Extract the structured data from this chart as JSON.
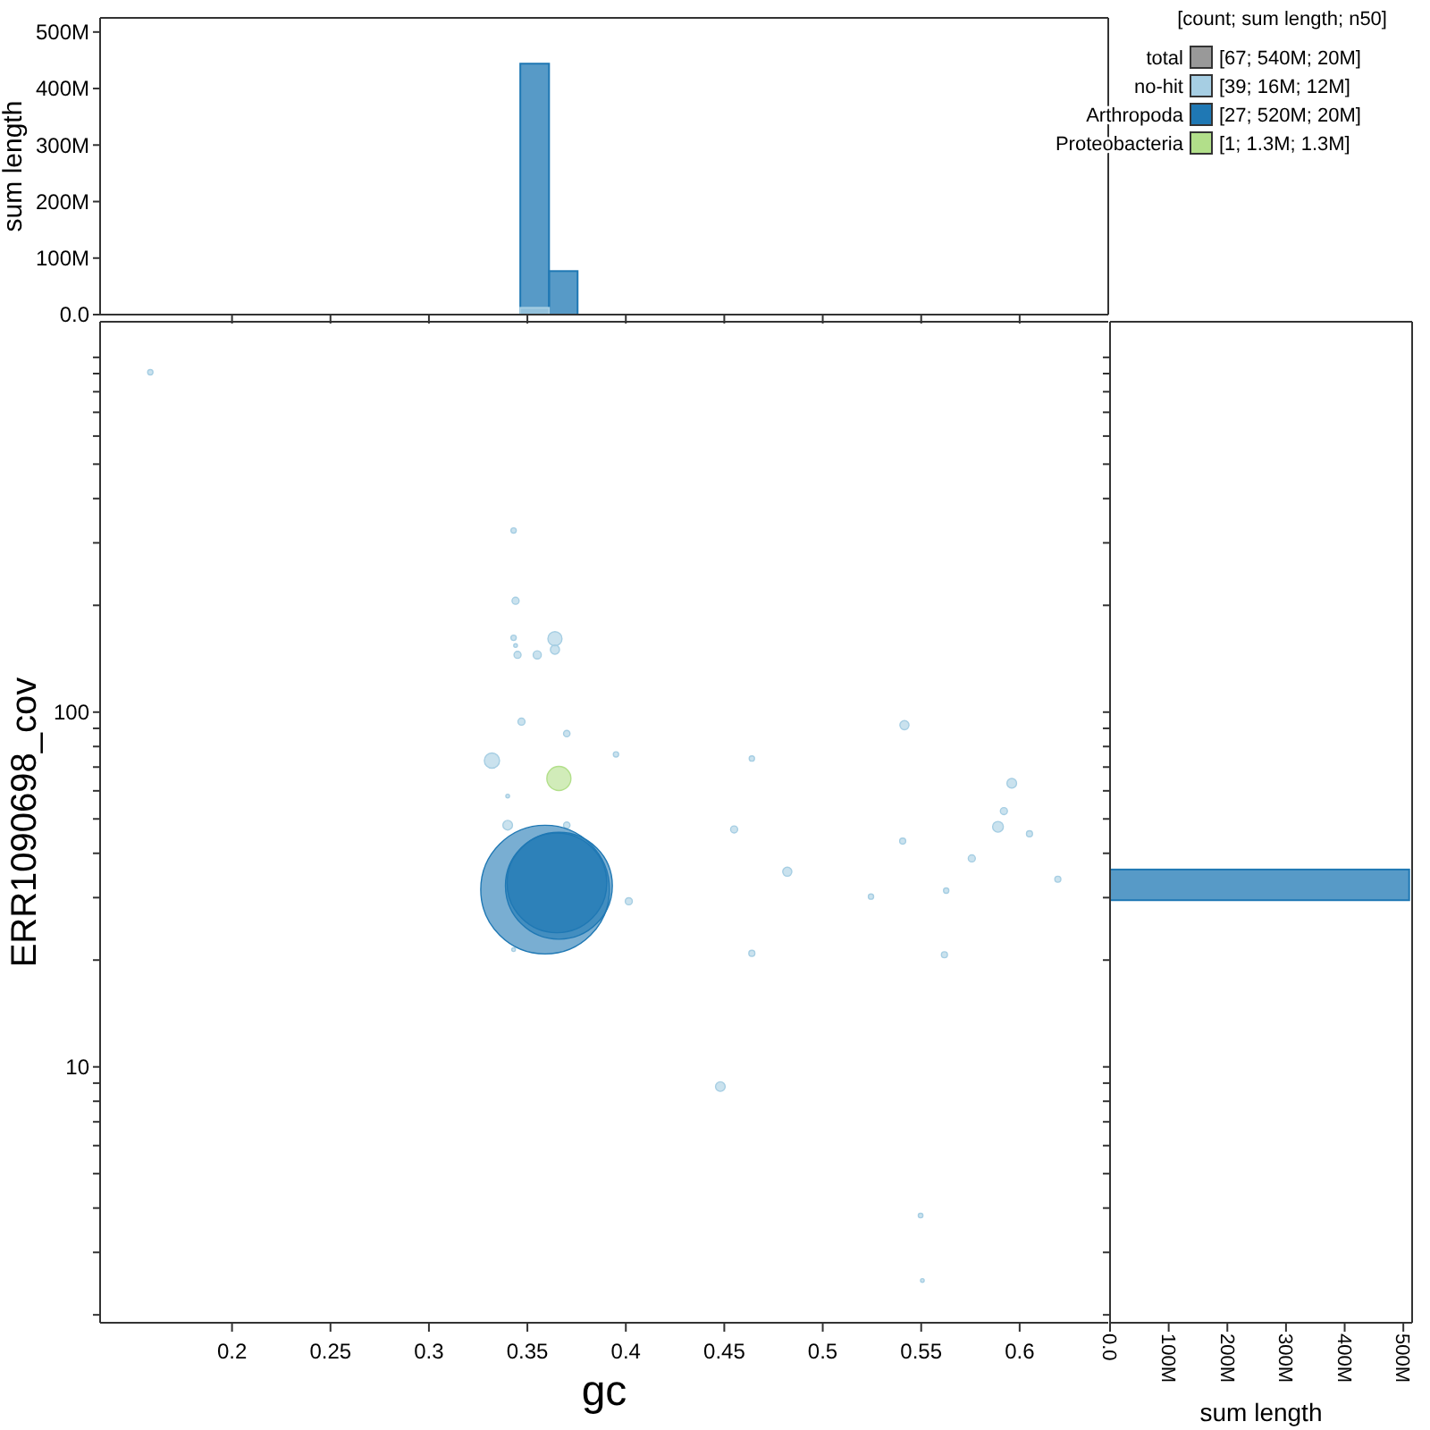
{
  "chart_data": [
    {
      "type": "histogram",
      "ylabel": "sum length",
      "tick_labels": "y",
      "xlim": [
        0.133,
        0.645
      ],
      "xticks": [
        {
          "value": 0.2,
          "label": null
        },
        {
          "value": 0.25,
          "label": null
        },
        {
          "value": 0.3,
          "label": null
        },
        {
          "value": 0.35,
          "label": null
        },
        {
          "value": 0.4,
          "label": null
        },
        {
          "value": 0.45,
          "label": null
        },
        {
          "value": 0.5,
          "label": null
        },
        {
          "value": 0.55,
          "label": null
        },
        {
          "value": 0.6,
          "label": null
        }
      ],
      "ylim": [
        0,
        525000000
      ],
      "yticks": [
        {
          "value": 0,
          "label": "0.0"
        },
        {
          "value": 100000000,
          "label": "100M"
        },
        {
          "value": 200000000,
          "label": "200M"
        },
        {
          "value": 300000000,
          "label": "300M"
        },
        {
          "value": 400000000,
          "label": "400M"
        },
        {
          "value": 500000000,
          "label": "500M"
        }
      ],
      "bins": [
        0.3464,
        0.361,
        0.3755
      ],
      "series": [
        {
          "color": "#1f78b4",
          "values": [
            444000000,
            77000000
          ]
        },
        {
          "color": "#a6cee3",
          "values": [
            12000000,
            null
          ]
        }
      ]
    },
    {
      "type": "bubble",
      "xlabel": "gc",
      "ylabel": "ERR1090698_cov",
      "legend_title": "[count; sum length; n50]",
      "legend": "top right",
      "log": "y",
      "xlim": [
        0.133,
        0.645
      ],
      "ylim": [
        1.9,
        1260
      ],
      "xticks": [
        0.2,
        0.25,
        0.3,
        0.35,
        0.4,
        0.45,
        0.5,
        0.55,
        0.6
      ],
      "yticks": [
        {
          "value": 2,
          "label": null
        },
        {
          "value": 3,
          "label": null
        },
        {
          "value": 4,
          "label": null
        },
        {
          "value": 5,
          "label": null
        },
        {
          "value": 6,
          "label": null
        },
        {
          "value": 7,
          "label": null
        },
        {
          "value": 8,
          "label": null
        },
        {
          "value": 9,
          "label": null
        },
        10,
        {
          "value": 20,
          "label": null
        },
        {
          "value": 30,
          "label": null
        },
        {
          "value": 40,
          "label": null
        },
        {
          "value": 50,
          "label": null
        },
        {
          "value": 60,
          "label": null
        },
        {
          "value": 70,
          "label": null
        },
        {
          "value": 80,
          "label": null
        },
        {
          "value": 90,
          "label": null
        },
        100,
        {
          "value": 200,
          "label": null
        },
        {
          "value": 300,
          "label": null
        },
        {
          "value": 400,
          "label": null
        },
        {
          "value": 500,
          "label": null
        },
        {
          "value": 600,
          "label": null
        },
        {
          "value": 700,
          "label": null
        },
        {
          "value": 800,
          "label": null
        },
        {
          "value": 900,
          "label": null
        },
        {
          "value": 1000,
          "label": null
        }
      ],
      "annotations": [
        "[67; 540M; 20M]",
        "[39; 16M; 12M]",
        "[27; 520M; 20M]",
        "[1; 1.3M; 1.3M]"
      ],
      "series": [
        {
          "name": "total",
          "color": "#999999"
        },
        {
          "name": "no-hit",
          "color": "#a6cee3",
          "x": [
            0.1585,
            0.343,
            0.344,
            0.343,
            0.344,
            0.345,
            0.355,
            0.364,
            0.364,
            0.347,
            0.37,
            0.395,
            0.332,
            0.34,
            0.34,
            0.37,
            0.4015,
            0.343,
            0.464,
            0.455,
            0.482,
            0.464,
            0.448,
            0.5415,
            0.5406,
            0.5245,
            0.5627,
            0.5618,
            0.5497,
            0.5506,
            0.596,
            0.592,
            0.589,
            0.605,
            0.5757,
            0.6194
          ],
          "values": [
            908,
            325,
            206,
            162,
            154,
            145,
            145,
            161,
            150,
            94,
            87,
            76,
            73,
            58,
            48,
            48,
            29.3,
            21.4,
            74,
            46.7,
            35.5,
            20.9,
            8.8,
            91.9,
            43.3,
            30.2,
            31.4,
            20.7,
            3.81,
            2.5,
            63,
            52.6,
            47.5,
            45.4,
            38.7,
            33.8
          ],
          "sizes": [
            0.0017,
            0.0017,
            0.003,
            0.0017,
            0.0008,
            0.003,
            0.004,
            0.012,
            0.005,
            0.003,
            0.0025,
            0.0017,
            0.014,
            0.0008,
            0.0056,
            0.0025,
            0.003,
            0.0008,
            0.0017,
            0.003,
            0.005,
            0.0022,
            0.0056,
            0.005,
            0.0022,
            0.0017,
            0.0017,
            0.0022,
            0.0013,
            0.0008,
            0.0056,
            0.003,
            0.007,
            0.0022,
            0.003,
            0.0022
          ]
        },
        {
          "name": "Arthropoda",
          "color": "#1f78b4",
          "x": [
            0.359,
            0.366,
            0.365
          ],
          "values": [
            31.6,
            32.4,
            33
          ],
          "sizes": [
            1,
            0.69,
            0.6
          ]
        },
        {
          "name": "Proteobacteria",
          "color": "#b2df8a",
          "x": [
            0.366
          ],
          "values": [
            65
          ],
          "sizes": [
            0.035
          ]
        }
      ]
    },
    {
      "type": "histogram",
      "orientation": "horizontal",
      "xlabel": "sum length",
      "tick_labels": "x",
      "log": "y",
      "ylim": [
        1.9,
        1260
      ],
      "yticks": [
        {
          "value": 2,
          "label": null
        },
        {
          "value": 3,
          "label": null
        },
        {
          "value": 4,
          "label": null
        },
        {
          "value": 5,
          "label": null
        },
        {
          "value": 6,
          "label": null
        },
        {
          "value": 7,
          "label": null
        },
        {
          "value": 8,
          "label": null
        },
        {
          "value": 9,
          "label": null
        },
        {
          "value": 10,
          "label": null
        },
        {
          "value": 20,
          "label": null
        },
        {
          "value": 30,
          "label": null
        },
        {
          "value": 40,
          "label": null
        },
        {
          "value": 50,
          "label": null
        },
        {
          "value": 60,
          "label": null
        },
        {
          "value": 70,
          "label": null
        },
        {
          "value": 80,
          "label": null
        },
        {
          "value": 90,
          "label": null
        },
        {
          "value": 100,
          "label": null
        },
        {
          "value": 200,
          "label": null
        },
        {
          "value": 300,
          "label": null
        },
        {
          "value": 400,
          "label": null
        },
        {
          "value": 500,
          "label": null
        },
        {
          "value": 600,
          "label": null
        },
        {
          "value": 700,
          "label": null
        },
        {
          "value": 800,
          "label": null
        },
        {
          "value": 900,
          "label": null
        },
        {
          "value": 1000,
          "label": null
        }
      ],
      "xlim": [
        0,
        515000000
      ],
      "xticks": [
        {
          "value": 0,
          "label": "0.0"
        },
        {
          "value": 100000000,
          "label": "100M"
        },
        {
          "value": 200000000,
          "label": "200M"
        },
        {
          "value": 300000000,
          "label": "300M"
        },
        {
          "value": 400000000,
          "label": "400M"
        },
        {
          "value": 500000000,
          "label": "500M"
        }
      ],
      "bins": [
        29.5,
        36
      ],
      "series": [
        {
          "color": "#1f78b4",
          "values": [
            510000000
          ]
        }
      ]
    }
  ]
}
